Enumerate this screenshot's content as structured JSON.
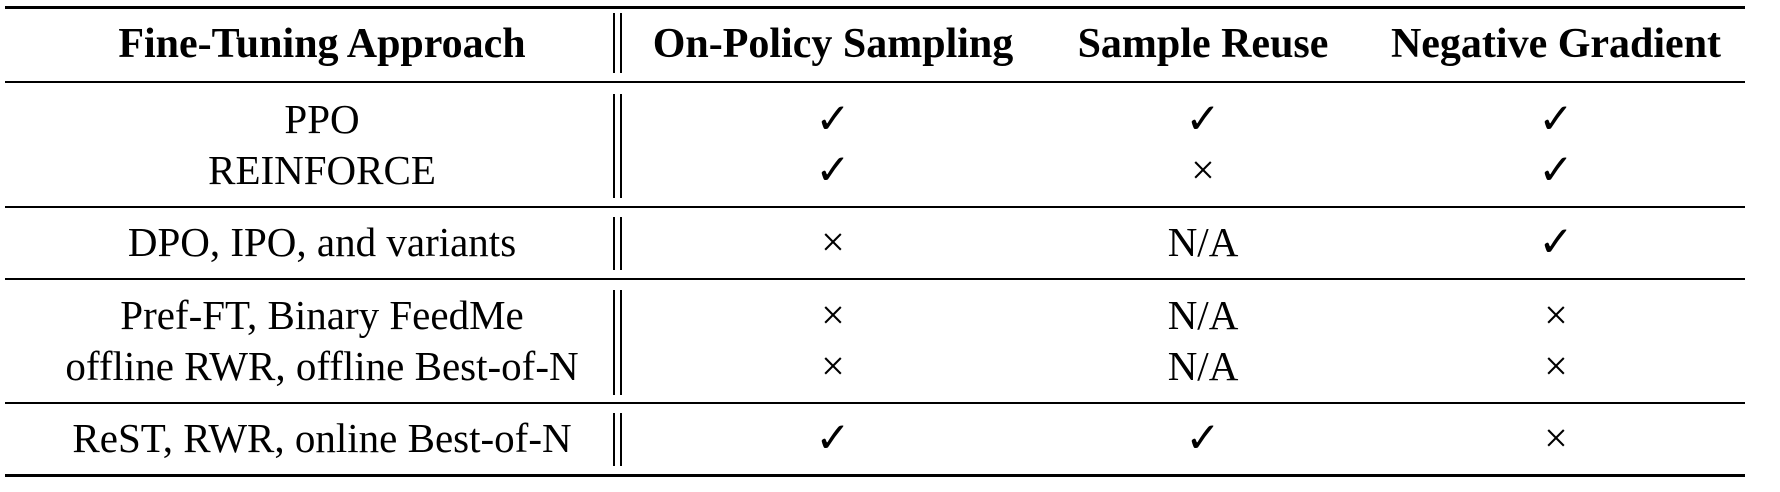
{
  "table": {
    "headers": [
      "Fine-Tuning Approach",
      "On-Policy Sampling",
      "Sample Reuse",
      "Negative Gradient"
    ],
    "groups": [
      {
        "rows": [
          {
            "approach": "PPO",
            "on_policy": "✓",
            "sample_reuse": "✓",
            "negative_gradient": "✓"
          },
          {
            "approach": "REINFORCE",
            "on_policy": "✓",
            "sample_reuse": "×",
            "negative_gradient": "✓"
          }
        ]
      },
      {
        "rows": [
          {
            "approach": "DPO, IPO, and variants",
            "on_policy": "×",
            "sample_reuse": "N/A",
            "negative_gradient": "✓"
          }
        ]
      },
      {
        "rows": [
          {
            "approach": "Pref-FT, Binary FeedMe",
            "on_policy": "×",
            "sample_reuse": "N/A",
            "negative_gradient": "×"
          },
          {
            "approach": "offline RWR, offline Best-of-N",
            "on_policy": "×",
            "sample_reuse": "N/A",
            "negative_gradient": "×"
          }
        ]
      },
      {
        "rows": [
          {
            "approach": "ReST, RWR, online Best-of-N",
            "on_policy": "✓",
            "sample_reuse": "✓",
            "negative_gradient": "×"
          }
        ]
      }
    ]
  }
}
